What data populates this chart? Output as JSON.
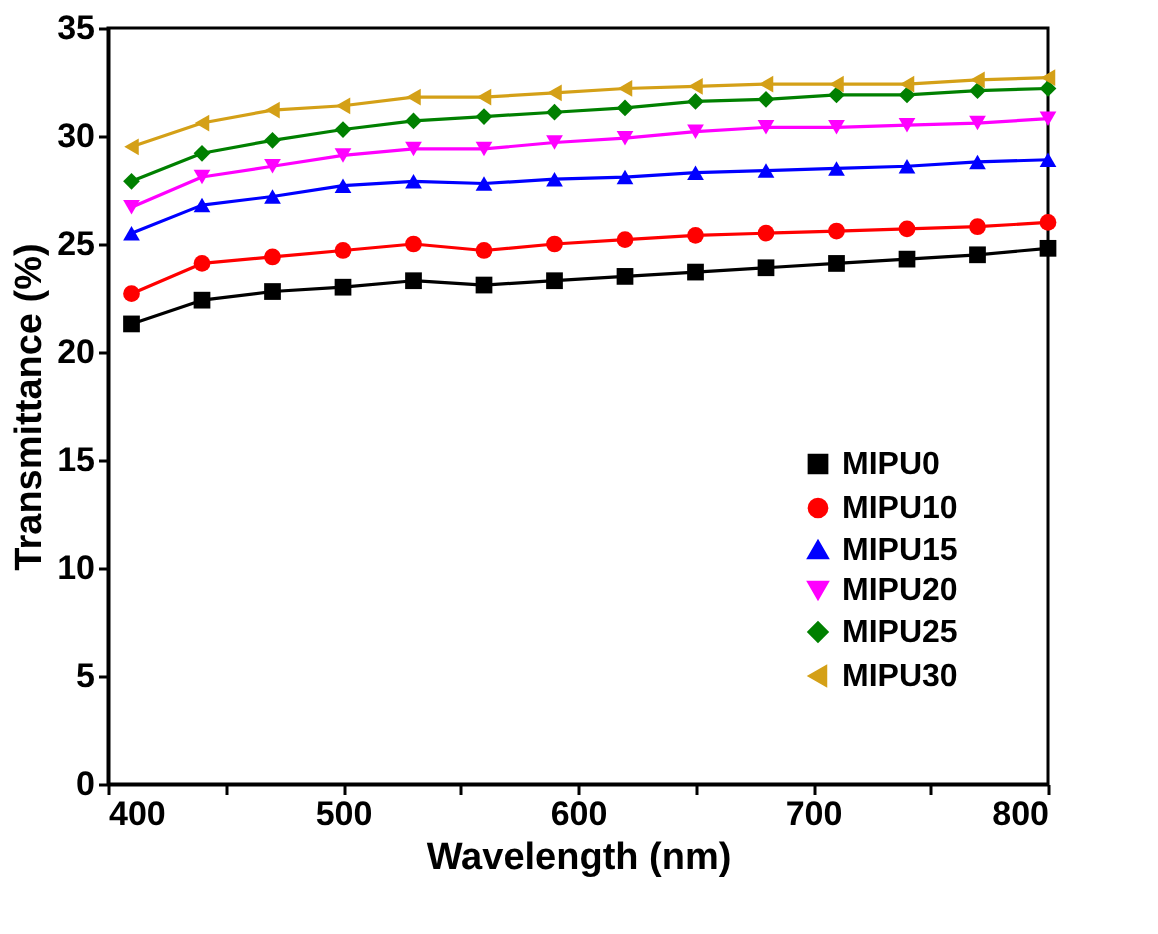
{
  "chart_data": {
    "type": "line",
    "xlabel": "Wavelength (nm)",
    "ylabel": "Transmittance (%)",
    "x": [
      410,
      440,
      470,
      500,
      530,
      560,
      590,
      620,
      650,
      680,
      710,
      740,
      770,
      800
    ],
    "xlim": [
      400,
      800
    ],
    "xticks": [
      400,
      {
        "value": 450,
        "label": null
      },
      500,
      {
        "value": 550,
        "label": null
      },
      600,
      {
        "value": 650,
        "label": null
      },
      700,
      {
        "value": 750,
        "label": null
      },
      800
    ],
    "ylim": [
      0,
      35
    ],
    "yticks": [
      0,
      5,
      10,
      15,
      20,
      25,
      30,
      35
    ],
    "grid": false,
    "legend": "bottom right",
    "line_style": "solid",
    "series": [
      {
        "name": "MIPU0",
        "color": "#000000",
        "marker": "square",
        "values": [
          21.3,
          22.4,
          22.8,
          23.0,
          23.3,
          23.1,
          23.3,
          23.5,
          23.7,
          23.9,
          24.1,
          24.3,
          24.5,
          24.8
        ]
      },
      {
        "name": "MIPU10",
        "color": "#ff0000",
        "marker": "circle",
        "values": [
          22.7,
          24.1,
          24.4,
          24.7,
          25.0,
          24.7,
          25.0,
          25.2,
          25.4,
          25.5,
          25.6,
          25.7,
          25.8,
          26.0
        ]
      },
      {
        "name": "MIPU15",
        "color": "#0000ff",
        "marker": "triangle-up",
        "values": [
          25.5,
          26.8,
          27.2,
          27.7,
          27.9,
          27.8,
          28.0,
          28.1,
          28.3,
          28.4,
          28.5,
          28.6,
          28.8,
          28.9
        ]
      },
      {
        "name": "MIPU20",
        "color": "#ff00ff",
        "marker": "triangle-down",
        "values": [
          26.7,
          28.1,
          28.6,
          29.1,
          29.4,
          29.4,
          29.7,
          29.9,
          30.2,
          30.4,
          30.4,
          30.5,
          30.6,
          30.8
        ]
      },
      {
        "name": "MIPU25",
        "color": "#008000",
        "marker": "diamond",
        "values": [
          27.9,
          29.2,
          29.8,
          30.3,
          30.7,
          30.9,
          31.1,
          31.3,
          31.6,
          31.7,
          31.9,
          31.9,
          32.1,
          32.2
        ]
      },
      {
        "name": "MIPU30",
        "color": "#d4a017",
        "marker": "triangle-left",
        "values": [
          29.5,
          30.6,
          31.2,
          31.4,
          31.8,
          31.8,
          32.0,
          32.2,
          32.3,
          32.4,
          32.4,
          32.4,
          32.6,
          32.7
        ]
      }
    ]
  }
}
